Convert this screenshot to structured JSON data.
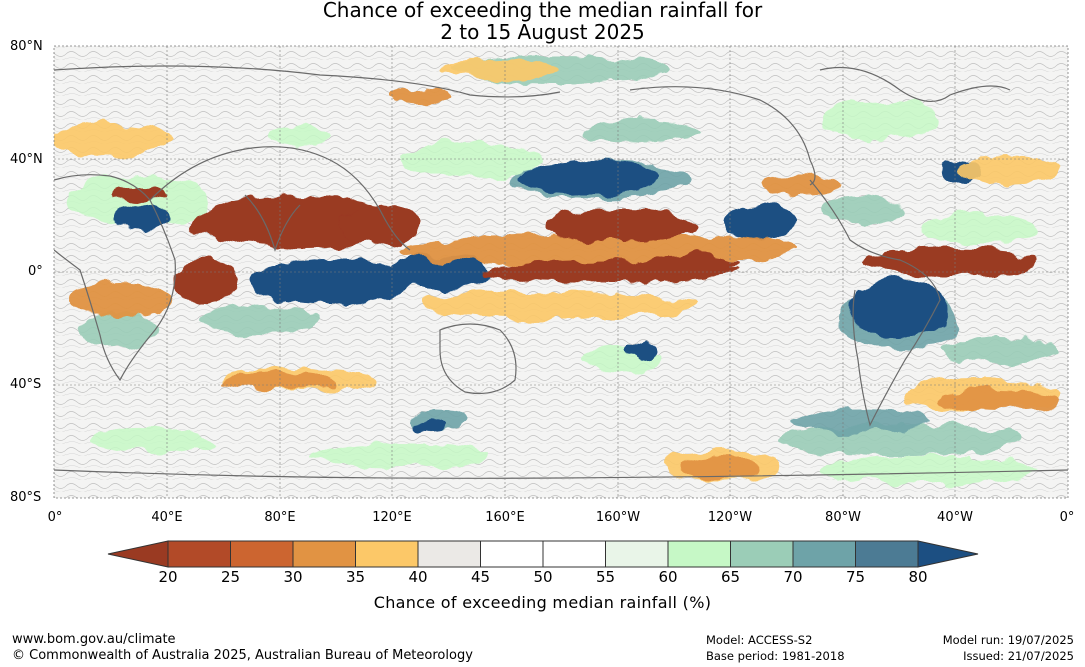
{
  "title": {
    "line1": "Chance of exceeding the median rainfall for",
    "line2": "2 to 15 August 2025"
  },
  "axes": {
    "lat_labels": [
      "80°N",
      "40°N",
      "0°",
      "40°S",
      "80°S"
    ],
    "lon_labels": [
      "0°",
      "40°E",
      "80°E",
      "120°E",
      "160°E",
      "160°W",
      "120°W",
      "80°W",
      "40°W",
      "0°"
    ]
  },
  "colorbar": {
    "ticks": [
      "20",
      "25",
      "30",
      "35",
      "40",
      "45",
      "50",
      "55",
      "60",
      "65",
      "70",
      "75",
      "80"
    ],
    "colors": [
      "#9a3a22",
      "#b24a28",
      "#cc6530",
      "#e19343",
      "#fcc868",
      "#ebe9e6",
      "#ffffff",
      "#ffffff",
      "#e9f5e8",
      "#c6f8c6",
      "#9bcdb7",
      "#6ea3a8",
      "#4c7b94",
      "#1c4f82"
    ],
    "label": "Chance of exceeding median rainfall (%)"
  },
  "footer": {
    "website": "www.bom.gov.au/climate",
    "copyright": "© Commonwealth of Australia 2025, Australian Bureau of Meteorology",
    "model": "Model: ACCESS-S2",
    "base_period": "Base period: 1981-2018",
    "model_run": "Model run: 19/07/2025",
    "issued": "Issued: 21/07/2025"
  }
}
